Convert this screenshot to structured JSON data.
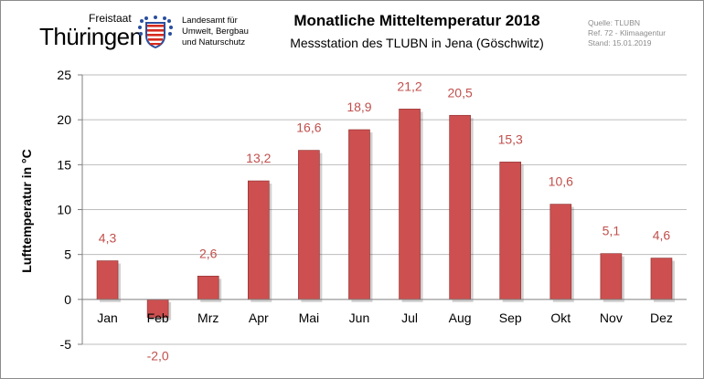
{
  "header": {
    "logo_top": "Freistaat",
    "logo_main": "Thüringen",
    "agency_lines": [
      "Landesamt für",
      "Umwelt, Bergbau",
      "und Naturschutz"
    ],
    "meta_lines": [
      "Quelle: TLUBN",
      "Ref. 72 - Klimaagentur",
      "Stand: 15.01.2019"
    ],
    "colors": {
      "shield_red": "#d52b1e",
      "shield_white": "#ffffff",
      "arms_blue": "#2a4f9e"
    }
  },
  "chart_data": {
    "type": "bar",
    "title": "Monatliche Mitteltemperatur 2018",
    "subtitle": "Messstation  des TLUBN  in Jena (Göschwitz)",
    "ylabel": "Lufttemperatur in °C",
    "xlabel": "",
    "categories": [
      "Jan",
      "Feb",
      "Mrz",
      "Apr",
      "Mai",
      "Jun",
      "Jul",
      "Aug",
      "Sep",
      "Okt",
      "Nov",
      "Dez"
    ],
    "values": [
      4.3,
      -2.0,
      2.6,
      13.2,
      16.6,
      18.9,
      21.2,
      20.5,
      15.3,
      10.6,
      5.1,
      4.6
    ],
    "data_labels": [
      "4,3",
      "-2,0",
      "2,6",
      "13,2",
      "16,6",
      "18,9",
      "21,2",
      "20,5",
      "15,3",
      "10,6",
      "5,1",
      "4,6"
    ],
    "ylim": [
      -5,
      25
    ],
    "yticks": [
      -5,
      0,
      5,
      10,
      15,
      20,
      25
    ],
    "grid": true,
    "legend": "none",
    "bar_color": "#cd4f4f",
    "label_color": "#c0504d"
  }
}
